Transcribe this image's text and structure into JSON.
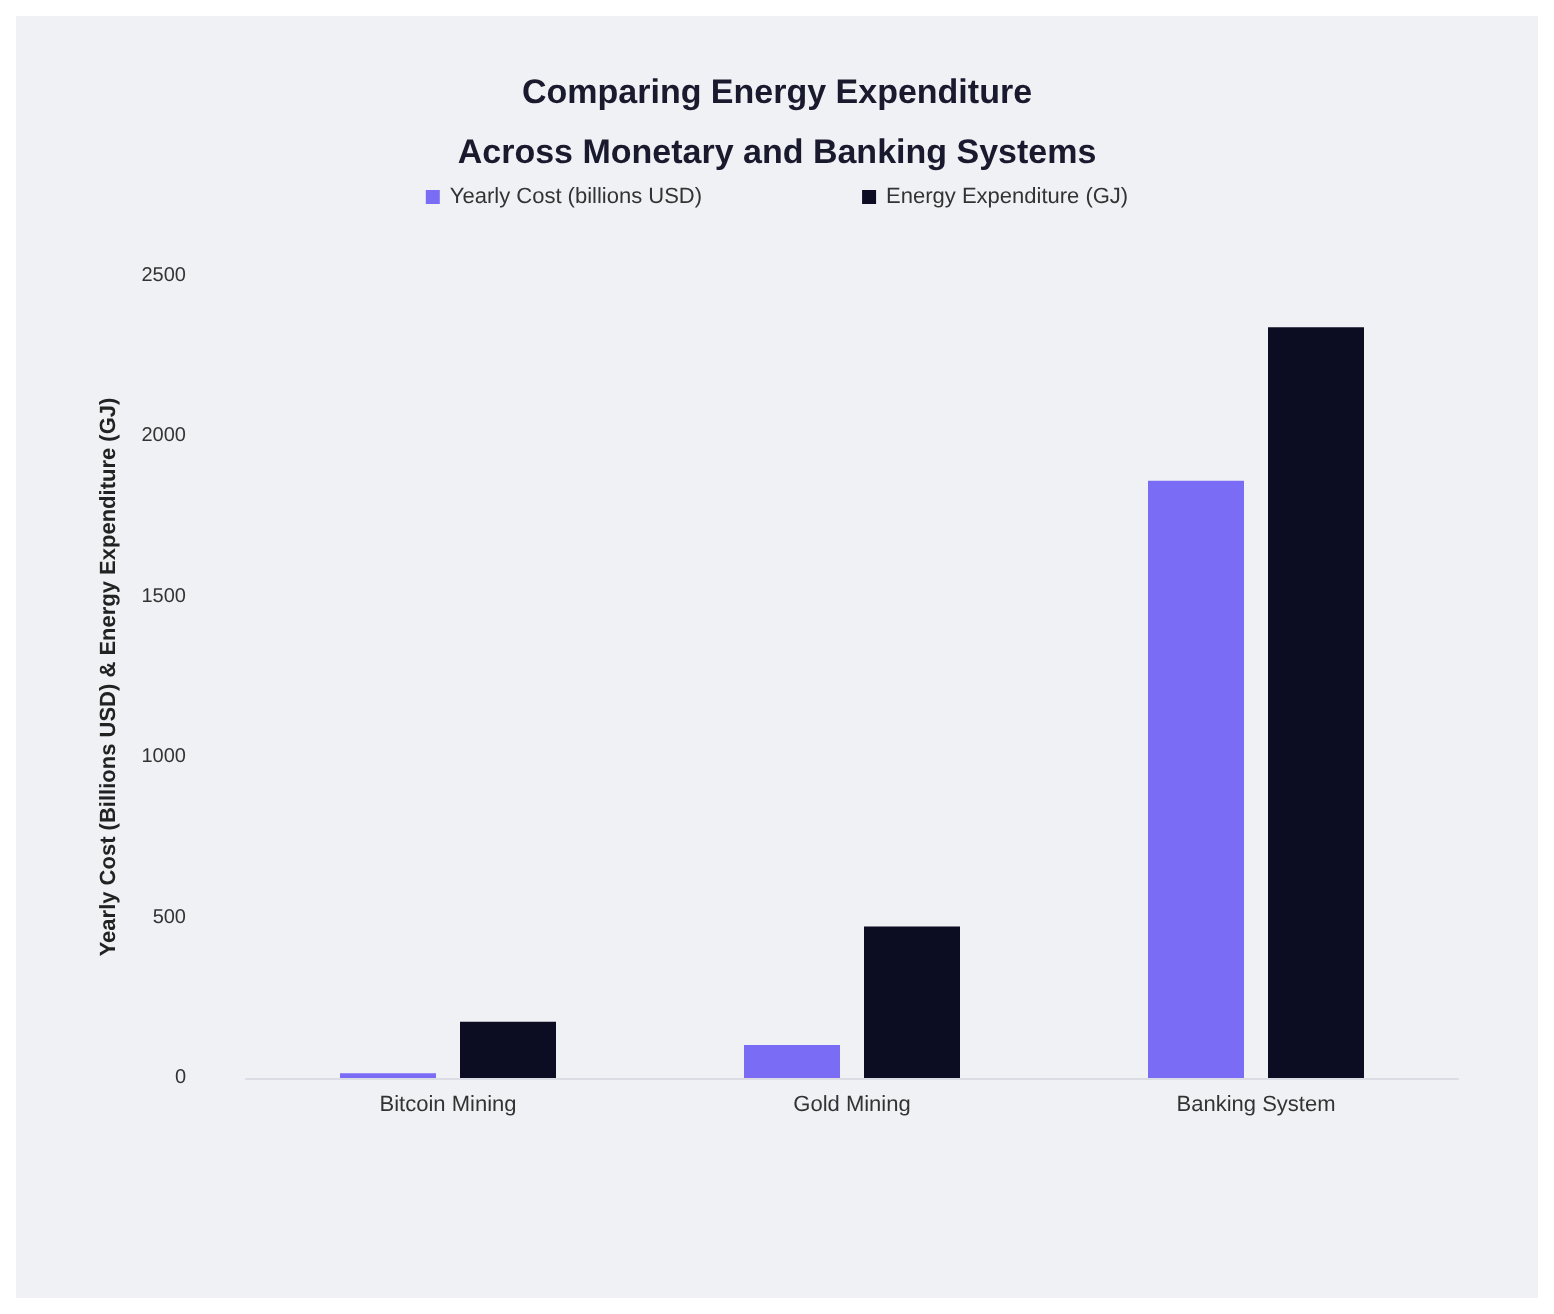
{
  "chart_data": {
    "type": "bar",
    "title": "Comparing Energy Expenditure\nAcross Monetary and Banking Systems",
    "ylabel": "Yearly Cost (Billions USD) & Energy Expenditure (GJ)",
    "categories": [
      "Bitcoin Mining",
      "Gold Mining",
      "Banking System"
    ],
    "series": [
      {
        "name": "Yearly Cost (billions USD)",
        "color": "#7b6cf6",
        "values": [
          15,
          103,
          1862
        ]
      },
      {
        "name": "Energy Expenditure (GJ)",
        "color": "#0c0c22",
        "values": [
          175,
          472,
          2340
        ]
      }
    ],
    "ylim": [
      0,
      2500
    ],
    "yticks": [
      0,
      500,
      1000,
      1500,
      2000,
      2500
    ],
    "grid": false,
    "legend": "top"
  }
}
